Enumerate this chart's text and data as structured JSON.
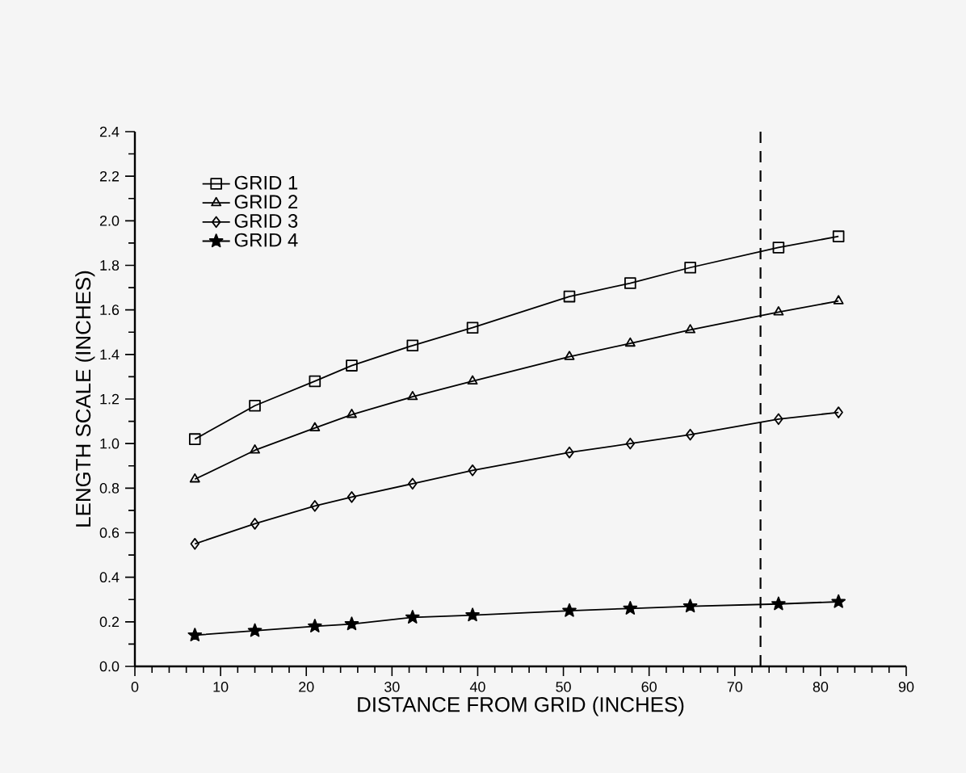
{
  "chart_data": {
    "type": "line",
    "xlabel": "DISTANCE FROM GRID (INCHES)",
    "ylabel": "LENGTH SCALE (INCHES)",
    "x": [
      7,
      14,
      21,
      25.3,
      32.4,
      39.4,
      50.7,
      57.8,
      64.8,
      75.1,
      82.1
    ],
    "series": [
      {
        "name": "GRID  1",
        "color": "#000000",
        "marker": "square",
        "values": [
          1.02,
          1.17,
          1.28,
          1.35,
          1.44,
          1.52,
          1.66,
          1.72,
          1.79,
          1.88,
          1.93
        ]
      },
      {
        "name": "GRID  2",
        "color": "#000000",
        "marker": "triangle",
        "values": [
          0.84,
          0.97,
          1.07,
          1.13,
          1.21,
          1.28,
          1.39,
          1.45,
          1.51,
          1.59,
          1.64
        ]
      },
      {
        "name": "GRID  3",
        "color": "#000000",
        "marker": "diamond",
        "values": [
          0.55,
          0.64,
          0.72,
          0.76,
          0.82,
          0.88,
          0.96,
          1.0,
          1.04,
          1.11,
          1.14
        ]
      },
      {
        "name": "GRID  4",
        "color": "#000000",
        "marker": "star",
        "values": [
          0.14,
          0.16,
          0.18,
          0.19,
          0.22,
          0.23,
          0.25,
          0.26,
          0.27,
          0.28,
          0.29
        ]
      }
    ],
    "xlim": [
      0,
      90
    ],
    "xticks": [
      0,
      10,
      20,
      30,
      40,
      50,
      60,
      70,
      80,
      90
    ],
    "ylim": [
      0,
      2.4
    ],
    "yticks": [
      {
        "value": 0,
        "label": "0.0"
      },
      {
        "value": 0.2,
        "label": "0.2"
      },
      {
        "value": 0.4,
        "label": "0.4"
      },
      {
        "value": 0.6,
        "label": "0.6"
      },
      {
        "value": 0.8,
        "label": "0.8"
      },
      {
        "value": 1.0,
        "label": "1.0"
      },
      {
        "value": 1.2,
        "label": "1.2"
      },
      {
        "value": 1.4,
        "label": "1.4"
      },
      {
        "value": 1.6,
        "label": "1.6"
      },
      {
        "value": 1.8,
        "label": "1.8"
      },
      {
        "value": 2.0,
        "label": "2.0"
      },
      {
        "value": 2.2,
        "label": "2.2"
      },
      {
        "value": 2.4,
        "label": "2.4"
      }
    ],
    "ref_lines": [
      {
        "axis": "x",
        "value": 73,
        "line_style": "dashed"
      }
    ],
    "grid": false,
    "legend": "top left",
    "line_style": "solid"
  }
}
